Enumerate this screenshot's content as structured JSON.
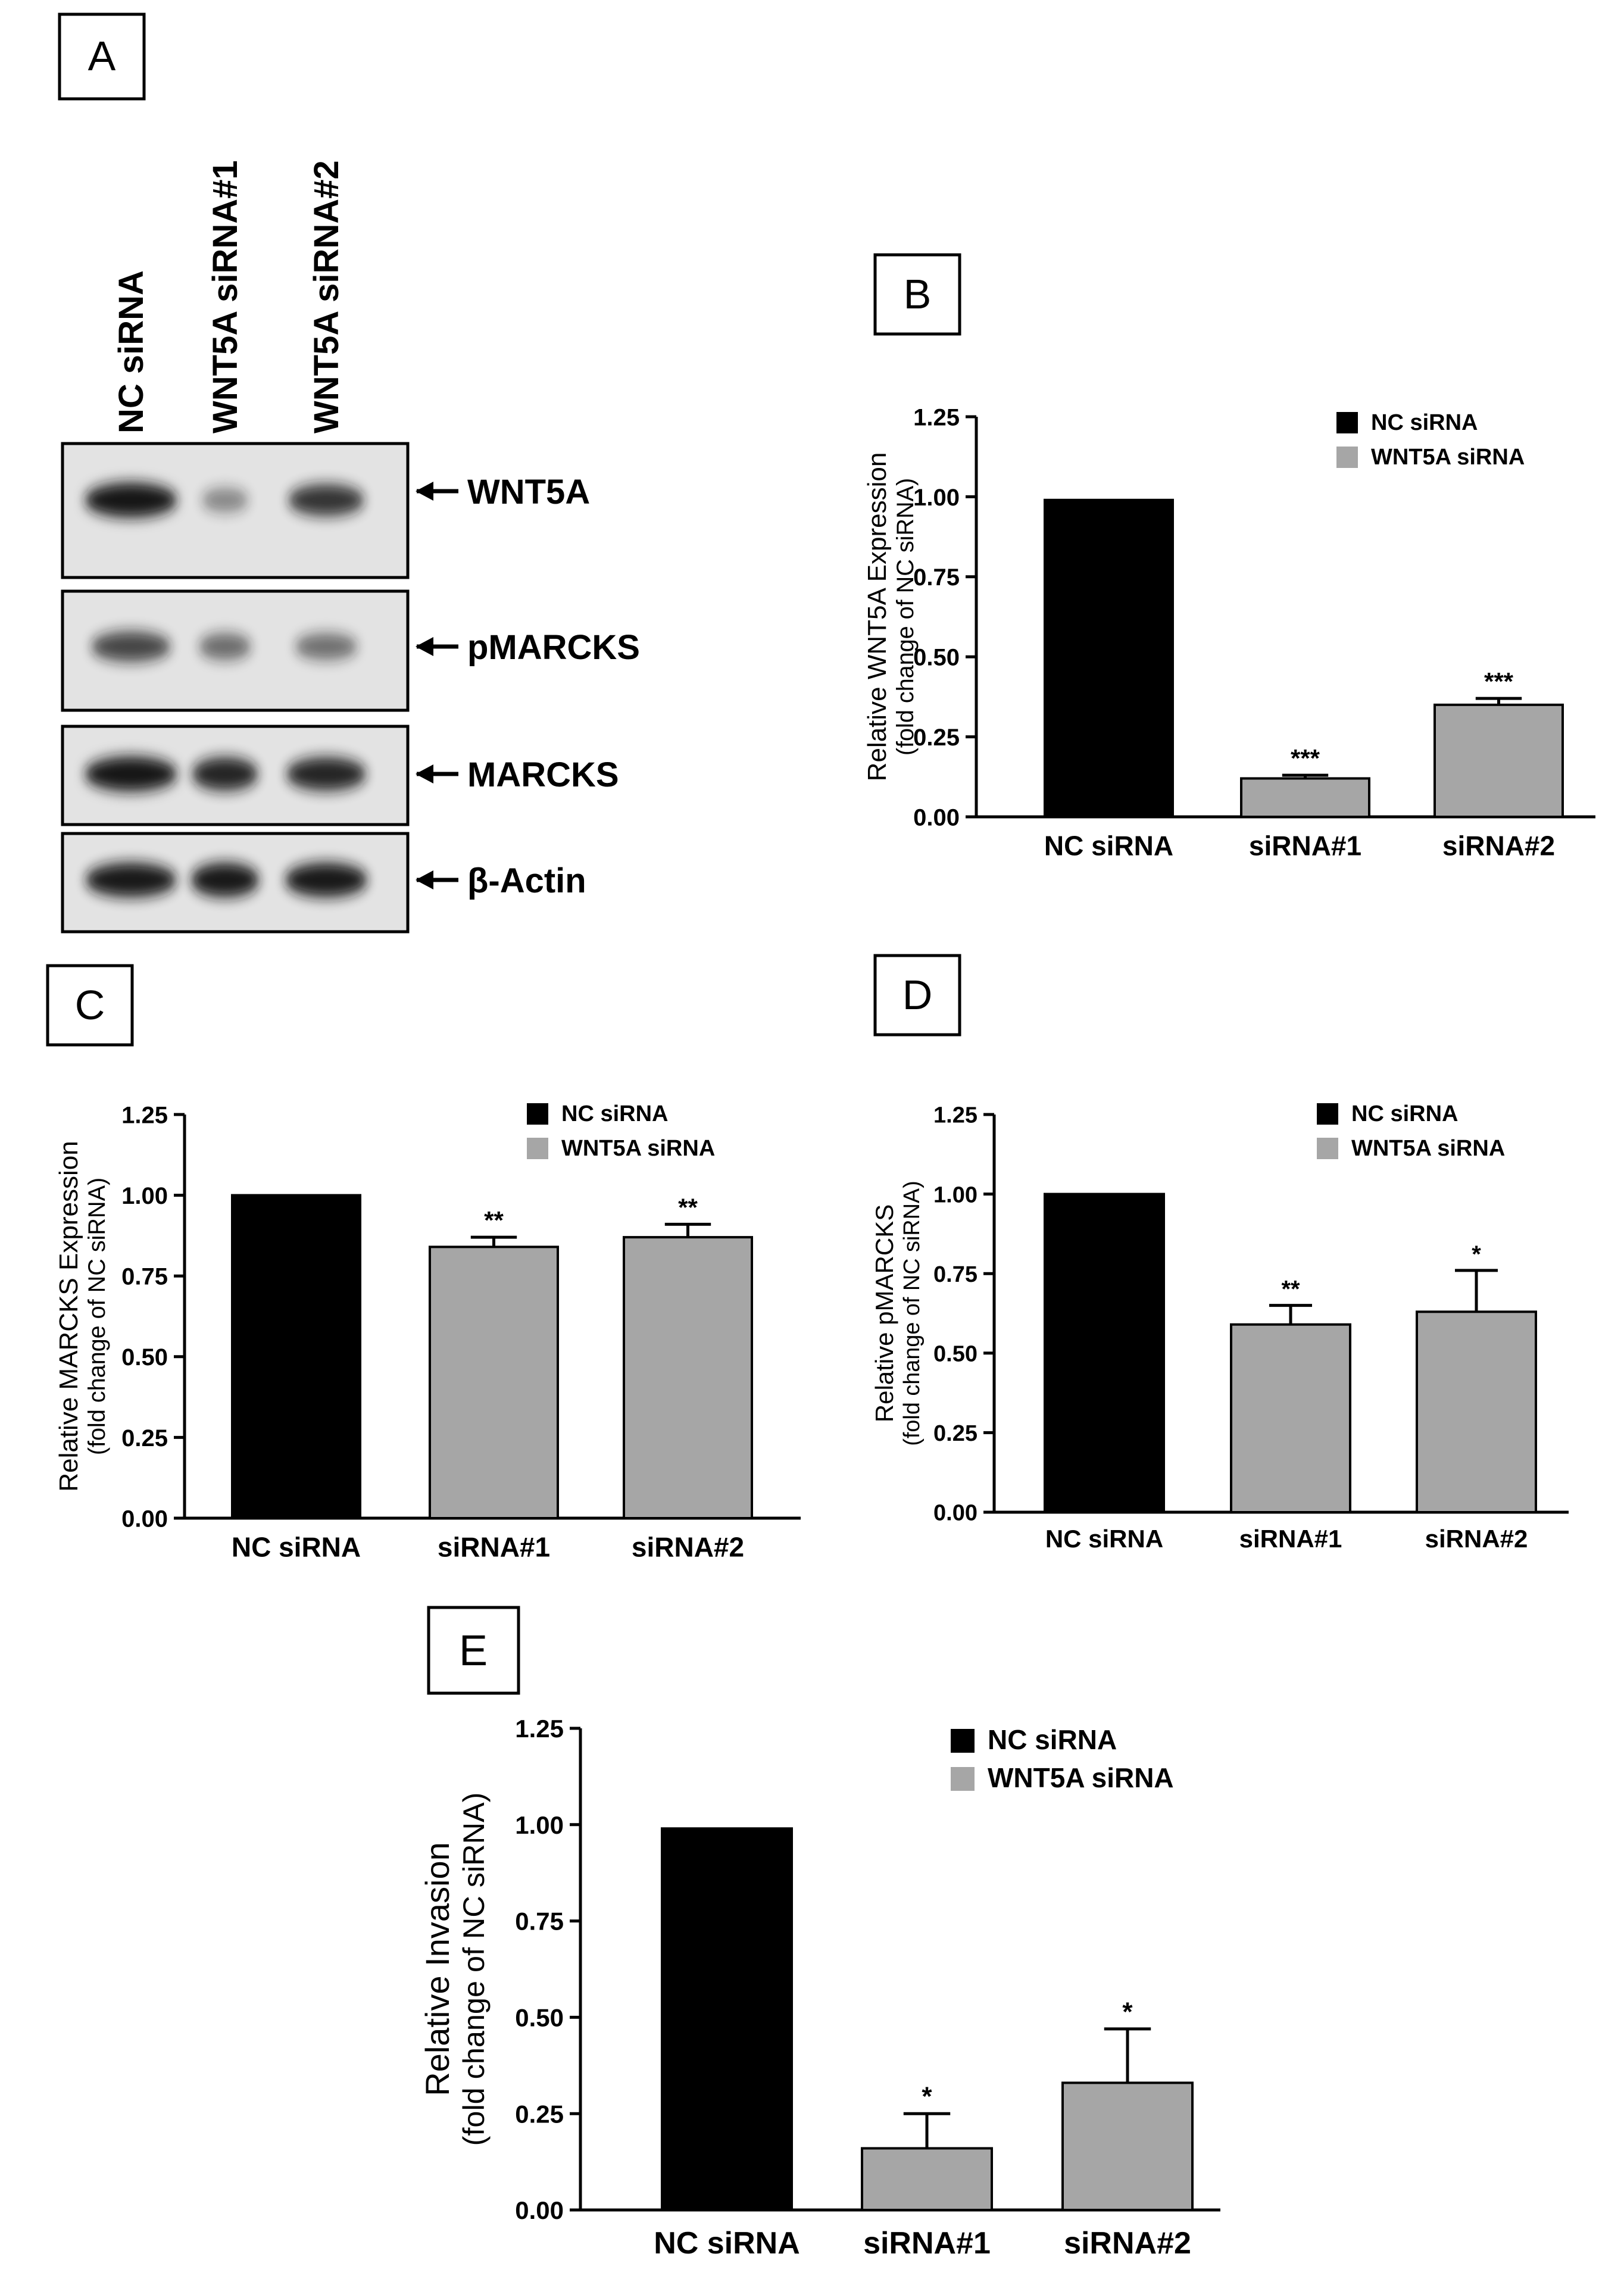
{
  "panel_labels": {
    "a": "A",
    "b": "B",
    "c": "C",
    "d": "D",
    "e": "E"
  },
  "legend": {
    "nc": "NC siRNA",
    "wnt": "WNT5A siRNA"
  },
  "colors": {
    "nc": "#000000",
    "wnt": "#a6a6a6",
    "blot_bg": "#e3e3e3",
    "band": "#161616"
  },
  "blot": {
    "lanes": [
      "NC siRNA",
      "WNT5A siRNA#1",
      "WNT5A siRNA#2"
    ],
    "rows": [
      {
        "label": "WNT5A",
        "intensity": [
          0.95,
          0.25,
          0.75
        ]
      },
      {
        "label": "pMARCKS",
        "intensity": [
          0.65,
          0.42,
          0.4
        ]
      },
      {
        "label": "MARCKS",
        "intensity": [
          0.95,
          0.85,
          0.85
        ]
      },
      {
        "label": "β-Actin",
        "intensity": [
          0.92,
          0.92,
          0.92
        ]
      }
    ]
  },
  "chart_data": [
    {
      "panel": "B",
      "type": "bar",
      "categories": [
        "NC siRNA",
        "siRNA#1",
        "siRNA#2"
      ],
      "values": [
        0.99,
        0.12,
        0.35
      ],
      "errors": [
        0,
        0.01,
        0.02
      ],
      "sig": [
        "",
        "***",
        "***"
      ],
      "ylabel": "Relative WNT5A Expression",
      "ylabel2": "(fold change of NC siRNA)",
      "ylim": [
        0,
        1.25
      ],
      "yticks": [
        "0.00",
        "0.25",
        "0.50",
        "0.75",
        "1.00",
        "1.25"
      ],
      "legend_position": "top-right"
    },
    {
      "panel": "C",
      "type": "bar",
      "categories": [
        "NC siRNA",
        "siRNA#1",
        "siRNA#2"
      ],
      "values": [
        1.0,
        0.84,
        0.87
      ],
      "errors": [
        0,
        0.03,
        0.04
      ],
      "sig": [
        "",
        "**",
        "**"
      ],
      "ylabel": "Relative MARCKS Expression",
      "ylabel2": "(fold change of NC siRNA)",
      "ylim": [
        0,
        1.25
      ],
      "yticks": [
        "0.00",
        "0.25",
        "0.50",
        "0.75",
        "1.00",
        "1.25"
      ],
      "legend_position": "top-right"
    },
    {
      "panel": "D",
      "type": "bar",
      "categories": [
        "NC siRNA",
        "siRNA#1",
        "siRNA#2"
      ],
      "values": [
        1.0,
        0.59,
        0.63
      ],
      "errors": [
        0,
        0.06,
        0.13
      ],
      "sig": [
        "",
        "**",
        "*"
      ],
      "ylabel": "Relative pMARCKS",
      "ylabel2": "(fold change of NC siRNA)",
      "ylim": [
        0,
        1.25
      ],
      "yticks": [
        "0.00",
        "0.25",
        "0.50",
        "0.75",
        "1.00",
        "1.25"
      ],
      "legend_position": "top-right"
    },
    {
      "panel": "E",
      "type": "bar",
      "categories": [
        "NC siRNA",
        "siRNA#1",
        "siRNA#2"
      ],
      "values": [
        0.99,
        0.16,
        0.33
      ],
      "errors": [
        0,
        0.09,
        0.14
      ],
      "sig": [
        "",
        "*",
        "*"
      ],
      "ylabel": "Relative Invasion",
      "ylabel2": "(fold change of NC siRNA)",
      "ylim": [
        0,
        1.25
      ],
      "yticks": [
        "0.00",
        "0.25",
        "0.50",
        "0.75",
        "1.00",
        "1.25"
      ],
      "legend_position": "top-right"
    }
  ]
}
